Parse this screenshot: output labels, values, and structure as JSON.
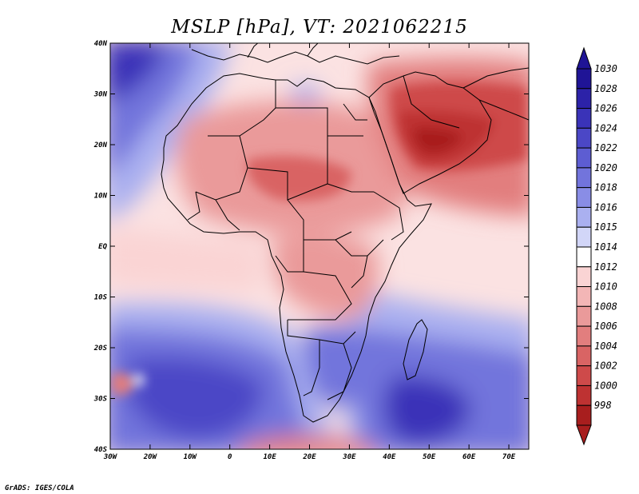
{
  "title": "MSLP [hPa], VT: 2021062215",
  "credit": "GrADS: IGES/COLA",
  "colors": {
    "frame": "#000000",
    "land_border": "#000000"
  },
  "lat_labels": [
    {
      "lat": 40,
      "label": "40N"
    },
    {
      "lat": 30,
      "label": "30N"
    },
    {
      "lat": 20,
      "label": "20N"
    },
    {
      "lat": 10,
      "label": "10N"
    },
    {
      "lat": 0,
      "label": "EQ"
    },
    {
      "lat": -10,
      "label": "10S"
    },
    {
      "lat": -20,
      "label": "20S"
    },
    {
      "lat": -30,
      "label": "30S"
    },
    {
      "lat": -40,
      "label": "40S"
    }
  ],
  "lon_labels": [
    {
      "lon": -30,
      "label": "30W"
    },
    {
      "lon": -20,
      "label": "20W"
    },
    {
      "lon": -10,
      "label": "10W"
    },
    {
      "lon": 0,
      "label": "0"
    },
    {
      "lon": 10,
      "label": "10E"
    },
    {
      "lon": 20,
      "label": "20E"
    },
    {
      "lon": 30,
      "label": "30E"
    },
    {
      "lon": 40,
      "label": "40E"
    },
    {
      "lon": 50,
      "label": "50E"
    },
    {
      "lon": 60,
      "label": "60E"
    },
    {
      "lon": 70,
      "label": "70E"
    }
  ],
  "colorbar": [
    {
      "label": "1030",
      "color": "#1f1496"
    },
    {
      "label": "1028",
      "color": "#2c22a8"
    },
    {
      "label": "1026",
      "color": "#3a33b8"
    },
    {
      "label": "1024",
      "color": "#4b47c6"
    },
    {
      "label": "1022",
      "color": "#5d5dd2"
    },
    {
      "label": "1020",
      "color": "#7274dc"
    },
    {
      "label": "1018",
      "color": "#898de6"
    },
    {
      "label": "1016",
      "color": "#aab0f0"
    },
    {
      "label": "1015",
      "color": "#d2d6f8"
    },
    {
      "label": "1014",
      "color": "#ffffff"
    },
    {
      "label": "1012",
      "color": "#fad4d4"
    },
    {
      "label": "1010",
      "color": "#f3b6b6"
    },
    {
      "label": "1008",
      "color": "#ea9a9a"
    },
    {
      "label": "1006",
      "color": "#e27e7e"
    },
    {
      "label": "1004",
      "color": "#d96464"
    },
    {
      "label": "1002",
      "color": "#ce4a4a"
    },
    {
      "label": "1000",
      "color": "#be3232"
    },
    {
      "label": "998",
      "color": "#a81e1e"
    }
  ]
}
